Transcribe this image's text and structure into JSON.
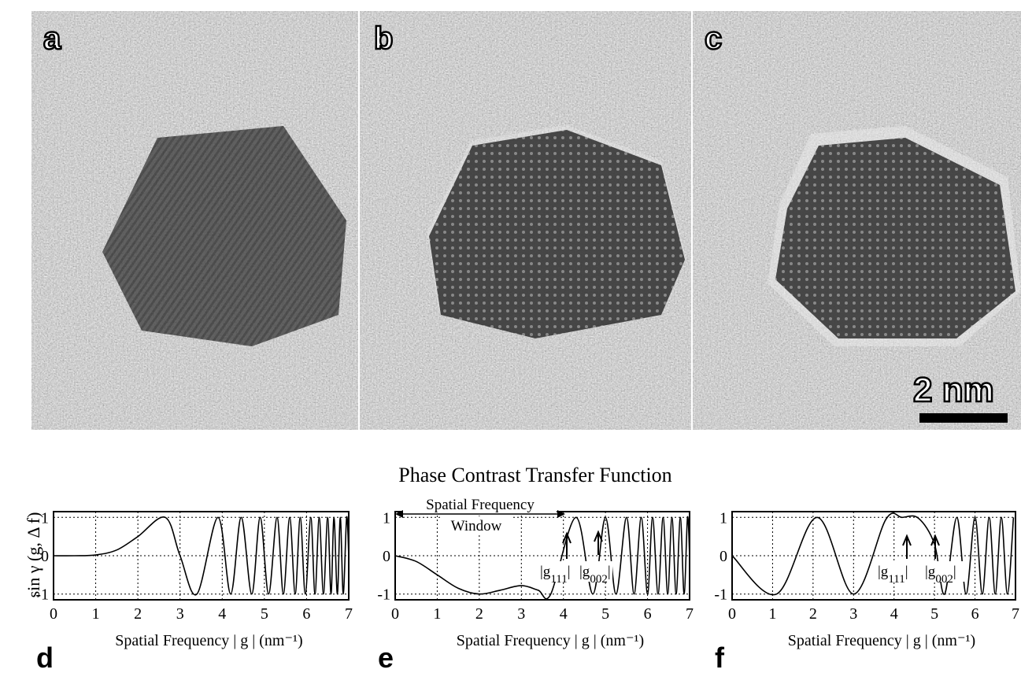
{
  "images": [
    {
      "label": "a"
    },
    {
      "label": "b"
    },
    {
      "label": "c",
      "scale_bar": "2 nm"
    }
  ],
  "title": "Phase Contrast Transfer Function",
  "y_label": "sin γ (g, Δ f)",
  "chart_data": [
    {
      "type": "line",
      "panel_label": "d",
      "xlabel": "Spatial Frequency  | g |   (nm⁻¹)",
      "color": "#000000",
      "grid": true,
      "xlim": [
        0,
        7
      ],
      "ylim": [
        -1.15,
        1.15
      ],
      "xticks": [
        0,
        1,
        2,
        3,
        4,
        5,
        6,
        7
      ],
      "yticks": [
        -1,
        0,
        1
      ],
      "x": [
        0,
        0.5,
        1,
        1.5,
        2,
        2.65,
        3,
        3.4,
        3.9,
        4.2,
        4.45,
        4.7,
        4.9,
        5.1,
        5.3,
        5.45,
        5.6,
        5.73,
        5.85,
        5.97,
        6.1,
        6.2,
        6.3,
        6.4,
        6.5,
        6.58,
        6.65,
        6.73,
        6.8,
        6.87,
        6.95,
        7
      ],
      "values": [
        0,
        0,
        0.02,
        0.15,
        0.5,
        1,
        0,
        -1,
        1,
        -1,
        1,
        -1,
        1,
        -1,
        1,
        -1,
        1,
        -1,
        1,
        -1,
        1,
        -1,
        1,
        -1,
        1,
        -1,
        1,
        -1,
        1,
        -1,
        1,
        0
      ]
    },
    {
      "type": "line",
      "panel_label": "e",
      "xlabel": "Spatial Frequency  | g |   (nm⁻¹)",
      "color": "#000000",
      "grid": true,
      "xlim": [
        0,
        7
      ],
      "ylim": [
        -1.15,
        1.15
      ],
      "xticks": [
        0,
        1,
        2,
        3,
        4,
        5,
        6,
        7
      ],
      "yticks": [
        -1,
        0,
        1
      ],
      "annotations": [
        "Spatial Frequency",
        "Window",
        "|g111|",
        "|g002|"
      ],
      "x": [
        0,
        0.5,
        1,
        1.5,
        2,
        2.5,
        3,
        3.4,
        3.7,
        4.3,
        4.7,
        5.0,
        5.25,
        5.5,
        5.68,
        5.85,
        6.0,
        6.12,
        6.25,
        6.37,
        6.48,
        6.58,
        6.68,
        6.78,
        6.87,
        6.95,
        7
      ],
      "values": [
        0,
        -0.15,
        -0.5,
        -0.85,
        -1,
        -0.9,
        -0.78,
        -0.9,
        -1,
        1,
        -1,
        1,
        -1,
        1,
        -1,
        1,
        -1,
        1,
        -1,
        1,
        -1,
        1,
        -1,
        1,
        -1,
        1,
        0
      ]
    },
    {
      "type": "line",
      "panel_label": "f",
      "xlabel": "Spatial Frequency  | g |   (nm⁻¹)",
      "color": "#000000",
      "grid": true,
      "xlim": [
        0,
        7
      ],
      "ylim": [
        -1.15,
        1.15
      ],
      "xticks": [
        0,
        1,
        2,
        3,
        4,
        5,
        6,
        7
      ],
      "yticks": [
        -1,
        0,
        1
      ],
      "annotations": [
        "|g111|",
        "|g002|"
      ],
      "x": [
        0,
        1.1,
        2.1,
        3.0,
        3.8,
        4.2,
        4.6,
        5.0,
        5.25,
        5.55,
        5.78,
        6.0,
        6.18,
        6.35,
        6.5,
        6.65,
        6.8,
        6.95
      ],
      "values": [
        0,
        -1,
        1,
        -1,
        0.95,
        1,
        0.98,
        0.3,
        -1,
        1,
        -1,
        1,
        -1,
        1,
        -1,
        1,
        -1,
        1
      ]
    }
  ]
}
